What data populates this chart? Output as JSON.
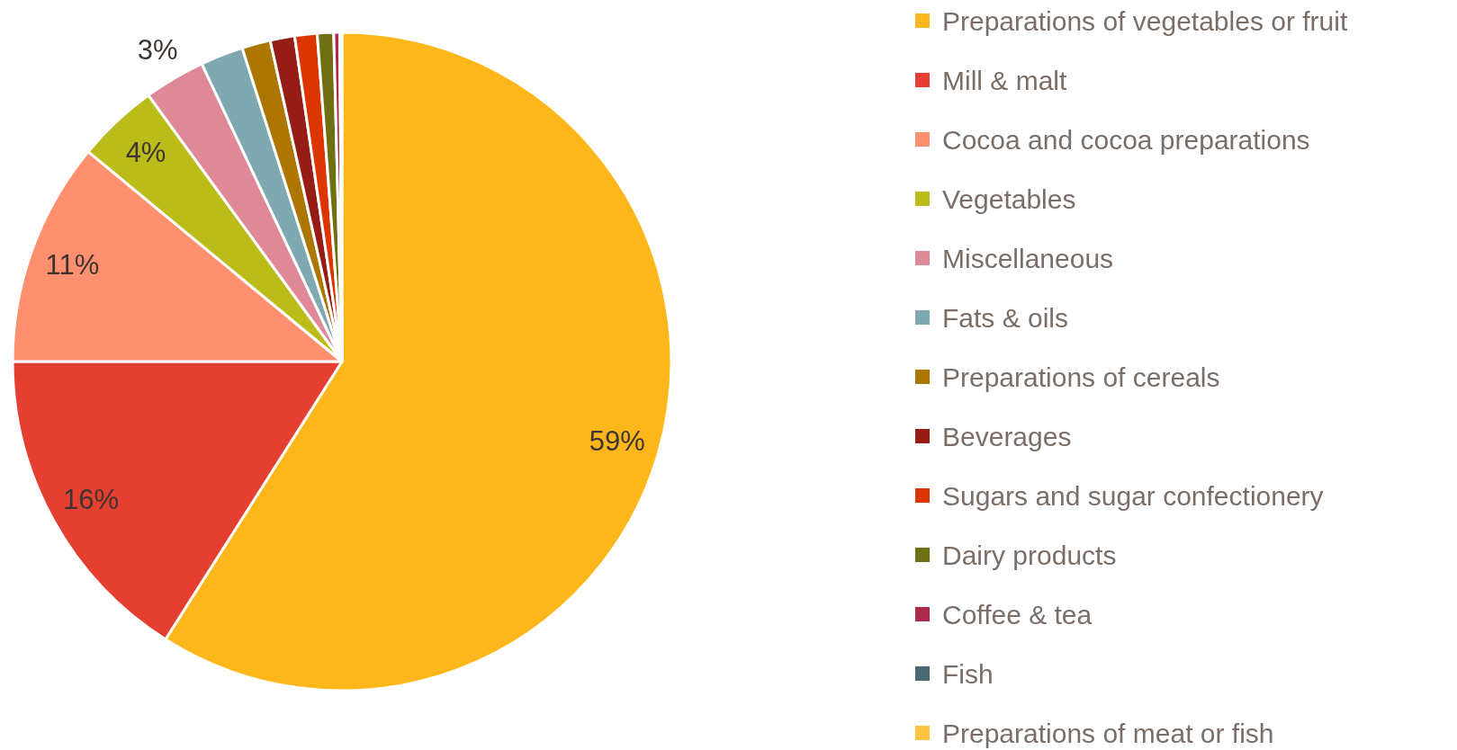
{
  "chart_data": {
    "type": "pie",
    "categories": [
      "Preparations of vegetables or fruit",
      "Mill & malt",
      "Cocoa and cocoa preparations",
      "Vegetables",
      "Miscellaneous",
      "Fats & oils",
      "Preparations of cereals",
      "Beverages",
      "Sugars and sugar confectionery",
      "Dairy products",
      "Coffee & tea",
      "Fish",
      "Preparations of meat or fish"
    ],
    "values": [
      59,
      16,
      11,
      4,
      3,
      2.1,
      1.4,
      1.2,
      1.1,
      0.8,
      0.3,
      null,
      0.1
    ],
    "colors": [
      "#fdb71a",
      "#e53f31",
      "#fe9070",
      "#bbbb1a",
      "#df8898",
      "#7ea9b0",
      "#ac7600",
      "#951d16",
      "#dd3500",
      "#6f7013",
      "#aa2c4a",
      "#466a70",
      "#fec340"
    ],
    "value_labels": [
      "59%",
      "16%",
      "11%",
      "4%",
      "3%",
      null,
      null,
      null,
      null,
      null,
      null,
      null,
      null
    ],
    "legend": "right"
  }
}
